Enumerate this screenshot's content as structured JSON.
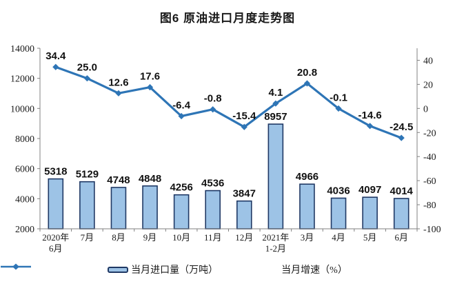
{
  "page": {
    "title": "图6 原油进口月度走势图"
  },
  "chart_data": {
    "type": "combo-bar-line",
    "title": "图6 原油进口月度走势图",
    "categories": [
      [
        "2020年",
        "6月"
      ],
      [
        "7月"
      ],
      [
        "8月"
      ],
      [
        "9月"
      ],
      [
        "10月"
      ],
      [
        "11月"
      ],
      [
        "12月"
      ],
      [
        "2021年",
        "1-2月"
      ],
      [
        "3月"
      ],
      [
        "4月"
      ],
      [
        "5月"
      ],
      [
        "6月"
      ]
    ],
    "series": [
      {
        "name": "当月进口量（万吨）",
        "type": "bar",
        "axis": "left",
        "values": [
          5318,
          5129,
          4748,
          4848,
          4256,
          4536,
          3847,
          8957,
          4966,
          4036,
          4097,
          4014
        ],
        "labels": [
          "5318",
          "5129",
          "4748",
          "4848",
          "4256",
          "4536",
          "3847",
          "8957",
          "4966",
          "4036",
          "4097",
          "4014"
        ]
      },
      {
        "name": "当月增速（%）",
        "type": "line",
        "axis": "right",
        "values": [
          34.4,
          25.0,
          12.6,
          17.6,
          -6.4,
          -0.8,
          -15.4,
          4.1,
          20.8,
          -0.1,
          -14.6,
          -24.5
        ],
        "labels": [
          "34.4",
          "25.0",
          "12.6",
          "17.6",
          "-6.4",
          "-0.8",
          "-15.4",
          "4.1",
          "20.8",
          "-0.1",
          "-14.6",
          "-24.5"
        ]
      }
    ],
    "left_axis": {
      "min": 2000,
      "max": 14000,
      "ticks": [
        2000,
        4000,
        6000,
        8000,
        10000,
        12000,
        14000
      ]
    },
    "right_axis": {
      "min": -100,
      "max": 50,
      "ticks": [
        -100,
        -80,
        -60,
        -40,
        -20,
        0,
        20,
        40
      ]
    },
    "legend": [
      "当月进口量（万吨）",
      "当月增速（%）"
    ],
    "colors": {
      "bar_fill": "#9DC3E6",
      "bar_border": "#1F3864",
      "line": "#2E75B6",
      "axis": "#808080",
      "text": "#111111",
      "background": "#FFFFFF"
    },
    "grid": "off",
    "legend_position": "bottom"
  }
}
